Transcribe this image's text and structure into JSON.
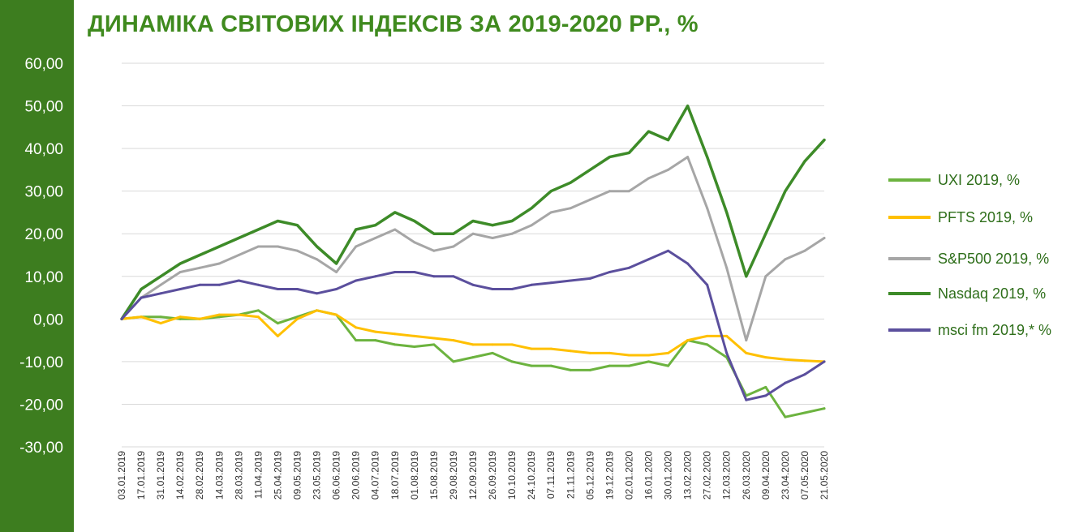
{
  "chart_data": {
    "type": "line",
    "title": "ДИНАМІКА СВІТОВИХ ІНДЕКСІВ ЗА 2019-2020 РР., %",
    "xlabel": "",
    "ylabel": "",
    "ylim": [
      -30,
      60
    ],
    "y_ticks": [
      "60,00",
      "50,00",
      "40,00",
      "30,00",
      "20,00",
      "10,00",
      "0,00",
      "-10,00",
      "-20,00",
      "-30,00"
    ],
    "grid": true,
    "legend_position": "right",
    "x": [
      "03.01.2019",
      "17.01.2019",
      "31.01.2019",
      "14.02.2019",
      "28.02.2019",
      "14.03.2019",
      "28.03.2019",
      "11.04.2019",
      "25.04.2019",
      "09.05.2019",
      "23.05.2019",
      "06.06.2019",
      "20.06.2019",
      "04.07.2019",
      "18.07.2019",
      "01.08.2019",
      "15.08.2019",
      "29.08.2019",
      "12.09.2019",
      "26.09.2019",
      "10.10.2019",
      "24.10.2019",
      "07.11.2019",
      "21.11.2019",
      "05.12.2019",
      "19.12.2019",
      "02.01.2020",
      "16.01.2020",
      "30.01.2020",
      "13.02.2020",
      "27.02.2020",
      "12.03.2020",
      "26.03.2020",
      "09.04.2020",
      "23.04.2020",
      "07.05.2020",
      "21.05.2020"
    ],
    "series": [
      {
        "name": "UXI 2019, %",
        "color": "#6cb33f",
        "values": [
          0,
          0.5,
          0.5,
          0,
          0,
          0.5,
          1,
          2,
          -1,
          0.5,
          2,
          1,
          -5,
          -5,
          -6,
          -6.5,
          -6,
          -10,
          -9,
          -8,
          -10,
          -11,
          -11,
          -12,
          -12,
          -11,
          -11,
          -10,
          -11,
          -5,
          -6,
          -9,
          -18,
          -16,
          -23,
          -22,
          -21
        ]
      },
      {
        "name": "PFTS 2019, %",
        "color": "#ffc000",
        "values": [
          0,
          0.5,
          -1,
          0.5,
          0,
          1,
          1,
          0.5,
          -4,
          0,
          2,
          1,
          -2,
          -3,
          -3.5,
          -4,
          -4.5,
          -5,
          -6,
          -6,
          -6,
          -7,
          -7,
          -7.5,
          -8,
          -8,
          -8.5,
          -8.5,
          -8,
          -5,
          -4,
          -4,
          -8,
          -9,
          -9.5,
          -9.8,
          -10
        ]
      },
      {
        "name": "S&P500 2019, %",
        "color": "#a6a6a6",
        "values": [
          0,
          5,
          8,
          11,
          12,
          13,
          15,
          17,
          17,
          16,
          14,
          11,
          17,
          19,
          21,
          18,
          16,
          17,
          20,
          19,
          20,
          22,
          25,
          26,
          28,
          30,
          30,
          33,
          35,
          38,
          26,
          12,
          -5,
          10,
          14,
          16,
          19
        ]
      },
      {
        "name": "Nasdaq 2019, %",
        "color": "#3d8b28",
        "values": [
          0,
          7,
          10,
          13,
          15,
          17,
          19,
          21,
          23,
          22,
          17,
          13,
          21,
          22,
          25,
          23,
          20,
          20,
          23,
          22,
          23,
          26,
          30,
          32,
          35,
          38,
          39,
          44,
          42,
          50,
          38,
          25,
          10,
          20,
          30,
          37,
          42
        ]
      },
      {
        "name": "msci fm 2019,* %",
        "color": "#5b4f9d",
        "values": [
          0,
          5,
          6,
          7,
          8,
          8,
          9,
          8,
          7,
          7,
          6,
          7,
          9,
          10,
          11,
          11,
          10,
          10,
          8,
          7,
          7,
          8,
          8.5,
          9,
          9.5,
          11,
          12,
          14,
          16,
          13,
          8,
          -8,
          -19,
          -18,
          -15,
          -13,
          -10
        ]
      }
    ]
  }
}
